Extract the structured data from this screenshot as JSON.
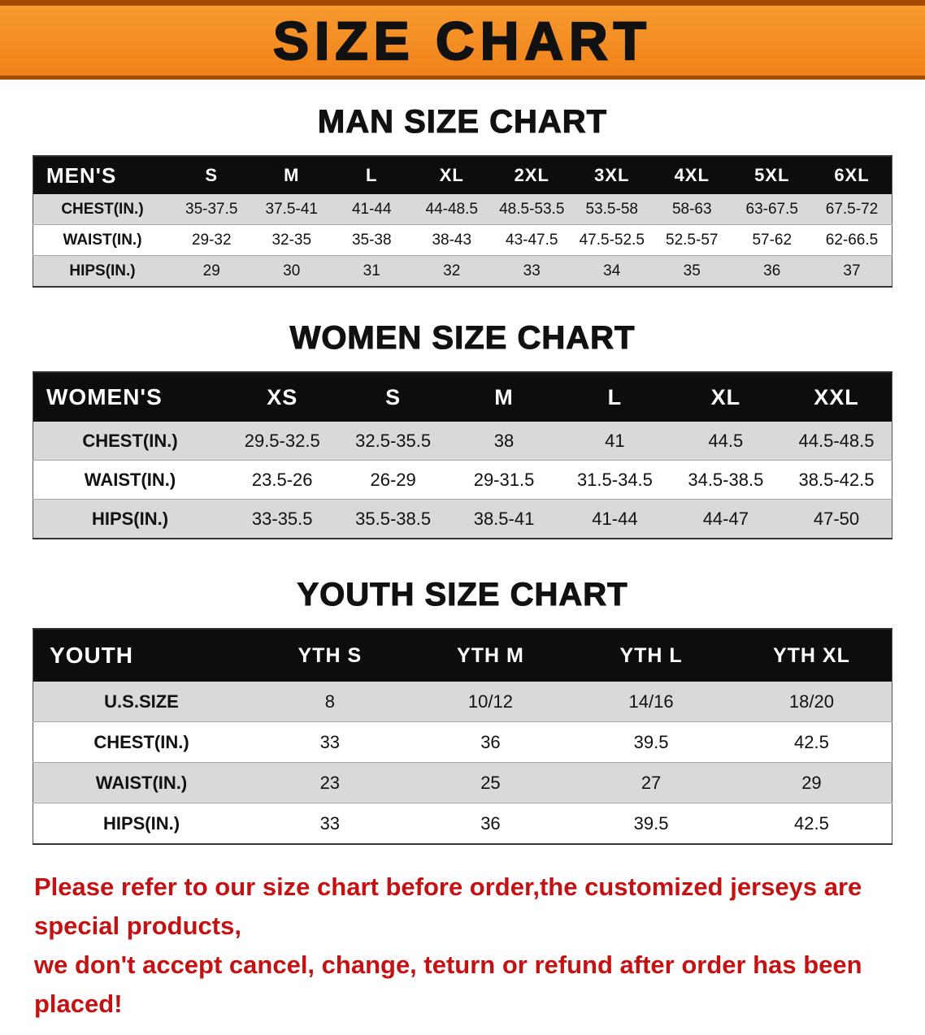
{
  "banner": {
    "title": "SIZE CHART",
    "bg_color": "#F0821A",
    "accent_color": "#A24C00"
  },
  "sections": [
    {
      "id": "men",
      "heading": "MAN SIZE CHART",
      "header": [
        "MEN'S",
        "S",
        "M",
        "L",
        "XL",
        "2XL",
        "3XL",
        "4XL",
        "5XL",
        "6XL"
      ],
      "rows": [
        [
          "CHEST(IN.)",
          "35-37.5",
          "37.5-41",
          "41-44",
          "44-48.5",
          "48.5-53.5",
          "53.5-58",
          "58-63",
          "63-67.5",
          "67.5-72"
        ],
        [
          "WAIST(IN.)",
          "29-32",
          "32-35",
          "35-38",
          "38-43",
          "43-47.5",
          "47.5-52.5",
          "52.5-57",
          "57-62",
          "62-66.5"
        ],
        [
          "HIPS(IN.)",
          "29",
          "30",
          "31",
          "32",
          "33",
          "34",
          "35",
          "36",
          "37"
        ]
      ]
    },
    {
      "id": "women",
      "heading": "WOMEN SIZE CHART",
      "header": [
        "WOMEN'S",
        "XS",
        "S",
        "M",
        "L",
        "XL",
        "XXL"
      ],
      "rows": [
        [
          "CHEST(IN.)",
          "29.5-32.5",
          "32.5-35.5",
          "38",
          "41",
          "44.5",
          "44.5-48.5"
        ],
        [
          "WAIST(IN.)",
          "23.5-26",
          "26-29",
          "29-31.5",
          "31.5-34.5",
          "34.5-38.5",
          "38.5-42.5"
        ],
        [
          "HIPS(IN.)",
          "33-35.5",
          "35.5-38.5",
          "38.5-41",
          "41-44",
          "44-47",
          "47-50"
        ]
      ]
    },
    {
      "id": "youth",
      "heading": "YOUTH SIZE CHART",
      "header": [
        "YOUTH",
        "YTH S",
        "YTH M",
        "YTH L",
        "YTH XL"
      ],
      "rows": [
        [
          "U.S.SIZE",
          "8",
          "10/12",
          "14/16",
          "18/20"
        ],
        [
          "CHEST(IN.)",
          "33",
          "36",
          "39.5",
          "42.5"
        ],
        [
          "WAIST(IN.)",
          "23",
          "25",
          "27",
          "29"
        ],
        [
          "HIPS(IN.)",
          "33",
          "36",
          "39.5",
          "42.5"
        ]
      ]
    }
  ],
  "footer": {
    "line1": "Please refer to our size chart before order,the customized jerseys are special products,",
    "line2": "we don't accept cancel, change, teturn or refund after order has been placed!"
  }
}
